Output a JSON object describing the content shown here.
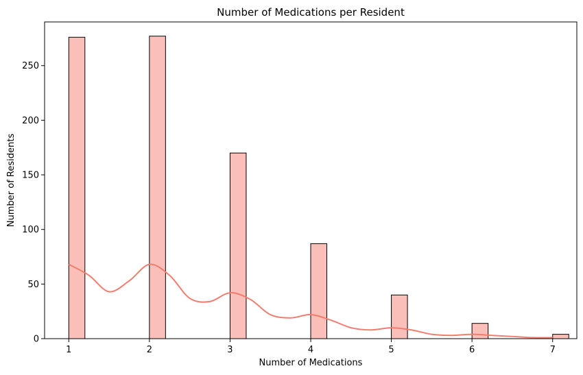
{
  "chart_data": {
    "type": "bar",
    "title": "Number of Medications per Resident",
    "xlabel": "Number of Medications",
    "ylabel": "Number of Residents",
    "xlim": [
      0.7,
      7.3
    ],
    "ylim": [
      0,
      290
    ],
    "x_ticks": [
      1,
      2,
      3,
      4,
      5,
      6,
      7
    ],
    "y_ticks": [
      0,
      50,
      100,
      150,
      200,
      250
    ],
    "bar_width": 0.2,
    "bars": [
      {
        "x": 1,
        "value": 276
      },
      {
        "x": 2,
        "value": 277
      },
      {
        "x": 3,
        "value": 170
      },
      {
        "x": 4,
        "value": 87
      },
      {
        "x": 5,
        "value": 40
      },
      {
        "x": 6,
        "value": 14
      },
      {
        "x": 7,
        "value": 4
      }
    ],
    "kde_curve": {
      "x": [
        1.0,
        1.25,
        1.5,
        1.75,
        2.0,
        2.25,
        2.5,
        2.75,
        3.0,
        3.25,
        3.5,
        3.75,
        4.0,
        4.25,
        4.5,
        4.75,
        5.0,
        5.25,
        5.5,
        5.75,
        6.0,
        6.25,
        6.5,
        6.75,
        7.0
      ],
      "y": [
        68,
        58,
        43,
        53,
        68,
        58,
        37,
        34,
        42,
        36,
        22,
        19,
        22,
        17,
        10,
        8,
        10,
        8,
        4,
        3,
        4,
        3,
        2,
        1,
        1
      ]
    },
    "grid": false,
    "colors": {
      "bar_fill": "#f9bfb8",
      "bar_edge": "#000000",
      "kde_line": "#f27d6e"
    }
  }
}
